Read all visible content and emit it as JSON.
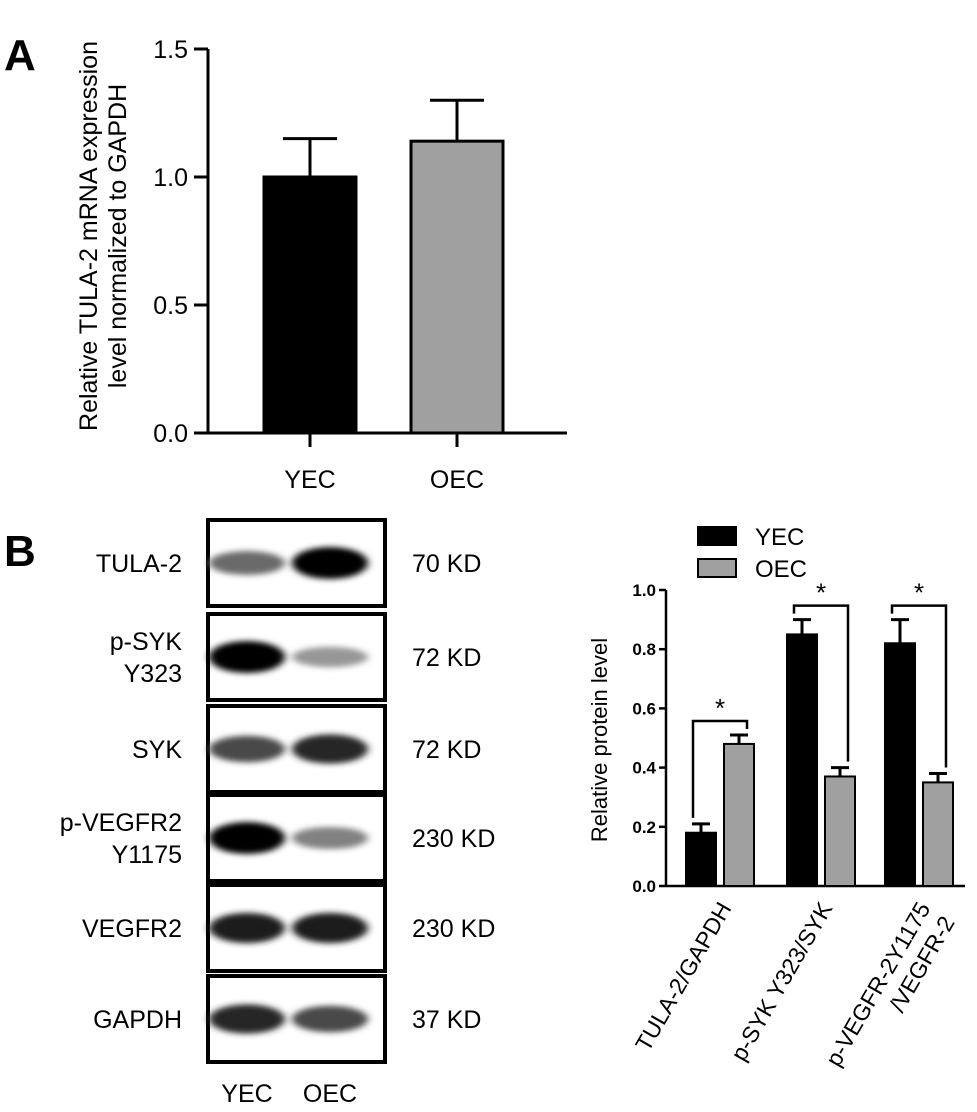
{
  "panel_labels": [
    "A",
    "B"
  ],
  "chart_data": [
    {
      "type": "bar",
      "categories": [
        "YEC",
        "OEC"
      ],
      "values": [
        1.0,
        1.14
      ],
      "errors": [
        0.15,
        0.16
      ],
      "ylabel_lines": [
        "Relative TULA-2 mRNA expression",
        "level normalized to GAPDH"
      ],
      "ylim": [
        0,
        1.5
      ],
      "yticks": [
        "0.0",
        "0.5",
        "1.0",
        "1.5"
      ],
      "ytick_values": [
        0,
        0.5,
        1.0,
        1.5
      ],
      "colors": [
        "#000000",
        "#a0a0a0"
      ]
    },
    {
      "type": "bar",
      "categories": [
        "TULA-2/GAPDH",
        "p-SYK Y323/SYK",
        "p-VEGFR-2Y1175 /VEGFR-2"
      ],
      "category_lines": [
        [
          "TULA-2/GAPDH"
        ],
        [
          "p-SYK Y323/SYK"
        ],
        [
          "p-VEGFR-2Y1175",
          "/VEGFR-2"
        ]
      ],
      "series": [
        {
          "name": "YEC",
          "values": [
            0.18,
            0.85,
            0.82
          ],
          "errors": [
            0.03,
            0.05,
            0.08
          ],
          "color": "#000000"
        },
        {
          "name": "OEC",
          "values": [
            0.48,
            0.37,
            0.35
          ],
          "errors": [
            0.03,
            0.03,
            0.03
          ],
          "color": "#a0a0a0"
        }
      ],
      "ylabel": "Relative protein level",
      "ylim": [
        0,
        1.0
      ],
      "yticks": [
        "0.0",
        "0.2",
        "0.4",
        "0.6",
        "0.8",
        "1.0"
      ],
      "ytick_values": [
        0,
        0.2,
        0.4,
        0.6,
        0.8,
        1.0
      ],
      "significance": [
        "*",
        "*",
        "*"
      ],
      "legend_position": "top"
    }
  ],
  "blot": {
    "rows": [
      {
        "label_lines": [
          "TULA-2"
        ],
        "kd": "70 KD",
        "yec": 0.55,
        "oec": 1.0
      },
      {
        "label_lines": [
          "p-SYK",
          "Y323"
        ],
        "kd": "72 KD",
        "yec": 1.0,
        "oec": 0.35
      },
      {
        "label_lines": [
          "SYK"
        ],
        "kd": "72 KD",
        "yec": 0.7,
        "oec": 0.85
      },
      {
        "label_lines": [
          "p-VEGFR2",
          "Y1175"
        ],
        "kd": "230 KD",
        "yec": 1.0,
        "oec": 0.45
      },
      {
        "label_lines": [
          "VEGFR2"
        ],
        "kd": "230 KD",
        "yec": 0.9,
        "oec": 0.9
      },
      {
        "label_lines": [
          "GAPDH"
        ],
        "kd": "37 KD",
        "yec": 0.85,
        "oec": 0.7
      }
    ],
    "lanes": [
      "YEC",
      "OEC"
    ]
  }
}
